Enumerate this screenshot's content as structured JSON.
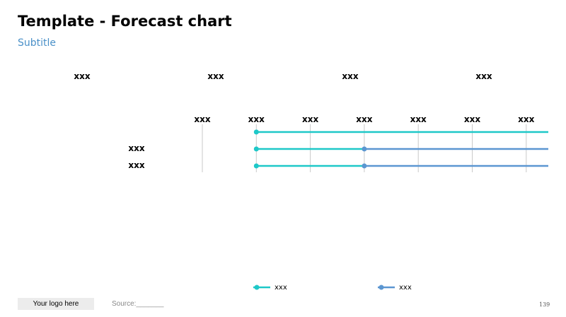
{
  "slide": {
    "title": "Template - Forecast chart",
    "subtitle": "Subtitle",
    "group_headers": [
      "xxx",
      "xxx",
      "xxx",
      "xxx"
    ],
    "page_number": "139"
  },
  "footer": {
    "logo_text": "Your logo here",
    "source_text": "Source:_______"
  },
  "colors": {
    "actual": "#1ec8c8",
    "forecast": "#5b96d1",
    "gridline": "#c9c9c9"
  },
  "chart_data": {
    "type": "line",
    "columns": [
      "xxx",
      "xxx",
      "xxx",
      "xxx",
      "xxx",
      "xxx",
      "xxx"
    ],
    "rows": [
      {
        "label": "",
        "start": 1,
        "end": 7,
        "forecast_from": null
      },
      {
        "label": "xxx",
        "start": 1,
        "end": 7,
        "forecast_from": 3
      },
      {
        "label": "xxx",
        "start": 1,
        "end": 7,
        "forecast_from": 3
      }
    ],
    "series": [
      {
        "name": "xxx",
        "color": "#1ec8c8"
      },
      {
        "name": "xxx",
        "color": "#5b96d1"
      }
    ]
  }
}
